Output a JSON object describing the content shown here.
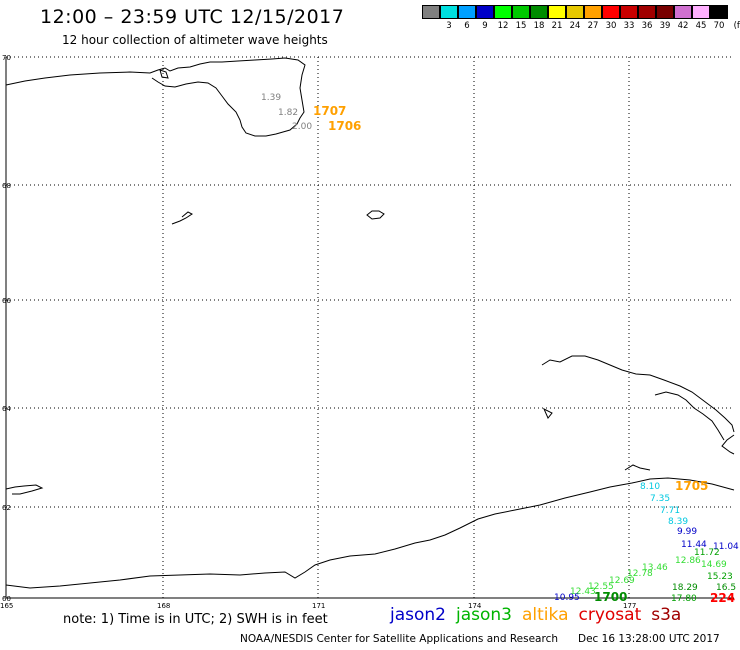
{
  "header": {
    "title": "12:00 – 23:59 UTC 12/15/2017",
    "subtitle": "12 hour collection of altimeter wave heights"
  },
  "scale": {
    "unit": "(ft)",
    "bins": [
      {
        "color": "#808080",
        "label": ""
      },
      {
        "color": "#00e0e0",
        "label": "3"
      },
      {
        "color": "#00a0ff",
        "label": "6"
      },
      {
        "color": "#0000c8",
        "label": "9"
      },
      {
        "color": "#00ff00",
        "label": "12"
      },
      {
        "color": "#00c800",
        "label": "15"
      },
      {
        "color": "#008c00",
        "label": "18"
      },
      {
        "color": "#ffff00",
        "label": "21"
      },
      {
        "color": "#e6c800",
        "label": "24"
      },
      {
        "color": "#ffa000",
        "label": "27"
      },
      {
        "color": "#ff0000",
        "label": "30"
      },
      {
        "color": "#c80000",
        "label": "33"
      },
      {
        "color": "#a00000",
        "label": "36"
      },
      {
        "color": "#780000",
        "label": "39"
      },
      {
        "color": "#d070d0",
        "label": "42"
      },
      {
        "color": "#ffb0ff",
        "label": "45"
      },
      {
        "color": "#000000",
        "label": "70"
      }
    ]
  },
  "axes": {
    "lat_labels": [
      "70",
      "68",
      "66",
      "64",
      "62",
      "60"
    ],
    "lon_labels": [
      "165",
      "168",
      "171",
      "174",
      "177"
    ]
  },
  "observations": [
    {
      "text": "1.39",
      "color": "#808080"
    },
    {
      "text": "1.82",
      "color": "#808080"
    },
    {
      "text": "2.00",
      "color": "#808080"
    },
    {
      "text": "1707",
      "color": "#ffa000"
    },
    {
      "text": "1706",
      "color": "#ffa000"
    },
    {
      "text": "8.10",
      "color": "#00c8e0"
    },
    {
      "text": "1705",
      "color": "#ffa000"
    },
    {
      "text": "7.35",
      "color": "#00c8e0"
    },
    {
      "text": "7.71",
      "color": "#00c8e0"
    },
    {
      "text": "8.39",
      "color": "#00c8e0"
    },
    {
      "text": "9.99",
      "color": "#0000c8"
    },
    {
      "text": "11.44",
      "color": "#0000c8"
    },
    {
      "text": "11.04",
      "color": "#0000c8"
    },
    {
      "text": "11.72",
      "color": "#00a000"
    },
    {
      "text": "12.86",
      "color": "#33dd33"
    },
    {
      "text": "14.69",
      "color": "#33dd33"
    },
    {
      "text": "13.46",
      "color": "#33dd33"
    },
    {
      "text": "12.78",
      "color": "#33dd33"
    },
    {
      "text": "12.69",
      "color": "#33dd33"
    },
    {
      "text": "12.55",
      "color": "#33dd33"
    },
    {
      "text": "12.43",
      "color": "#33dd33"
    },
    {
      "text": "15.23",
      "color": "#00a000"
    },
    {
      "text": "18.29",
      "color": "#008c00"
    },
    {
      "text": "16.5",
      "color": "#008c00"
    },
    {
      "text": "10.95",
      "color": "#0000c8"
    },
    {
      "text": "1700",
      "color": "#008c00"
    },
    {
      "text": "17.80",
      "color": "#00a000"
    },
    {
      "text": "224",
      "color": "#ff0000"
    }
  ],
  "note": "note: 1) Time is in UTC; 2) SWH is in feet",
  "satellites": [
    {
      "name": "jason2",
      "color": "#0000c8"
    },
    {
      "name": "jason3",
      "color": "#00b400"
    },
    {
      "name": "altika",
      "color": "#ffa000"
    },
    {
      "name": "cryosat",
      "color": "#e00000"
    },
    {
      "name": "s3a",
      "color": "#a00000"
    }
  ],
  "footer": {
    "center": "NOAA/NESDIS Center for Satellite Applications and Research",
    "timestamp": "Dec 16 13:28:00 UTC 2017"
  }
}
